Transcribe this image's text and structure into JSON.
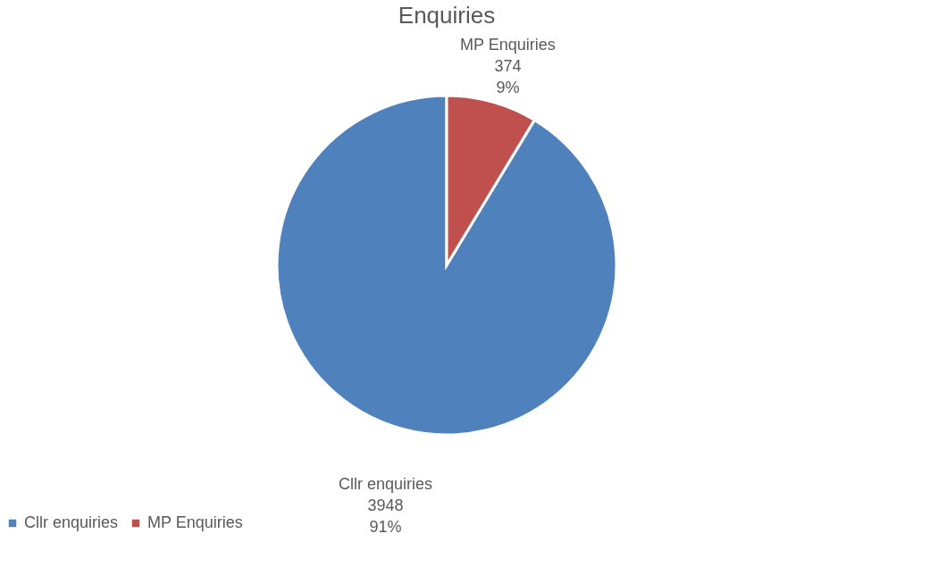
{
  "chart_data": {
    "type": "pie",
    "title": "Enquiries",
    "categories": [
      "Cllr enquiries",
      "MP Enquiries"
    ],
    "values": [
      3948,
      374
    ],
    "colors": [
      "#4f81bd",
      "#c0504d"
    ],
    "value_labels": [
      "Cllr enquiries\n3948\n91%",
      "MP Enquiries\n374\n9%"
    ],
    "legend": "bottom"
  }
}
